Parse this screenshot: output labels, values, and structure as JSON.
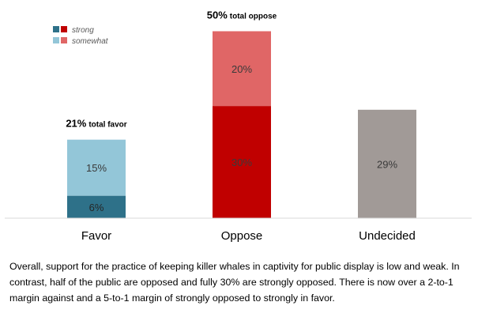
{
  "chart_data": {
    "type": "bar",
    "stacked": true,
    "categories": [
      "Favor",
      "Oppose",
      "Undecided"
    ],
    "series": [
      {
        "name": "strong",
        "values": [
          6,
          30,
          29
        ],
        "labels": [
          "6%",
          "30%",
          "29%"
        ]
      },
      {
        "name": "somewhat",
        "values": [
          15,
          20,
          0
        ],
        "labels": [
          "15%",
          "20%",
          ""
        ]
      }
    ],
    "colors": {
      "Favor": {
        "strong": "#2e7189",
        "somewhat": "#93c6d8"
      },
      "Oppose": {
        "strong": "#c00000",
        "somewhat": "#e06666"
      },
      "Undecided": {
        "strong": "#a19a97",
        "somewhat": "#a19a97"
      }
    },
    "legend": {
      "position": "top-left",
      "items": [
        {
          "label": "strong",
          "colors": [
            "#2e7189",
            "#c00000"
          ]
        },
        {
          "label": "somewhat",
          "colors": [
            "#93c6d8",
            "#e06666"
          ]
        }
      ]
    },
    "annotations": [
      {
        "category": "Favor",
        "value": "21%",
        "text": "total favor"
      },
      {
        "category": "Oppose",
        "value": "50%",
        "text": "total oppose"
      }
    ],
    "axis_line_color": "#d9d9d9",
    "ylim": [
      0,
      50
    ],
    "title": "",
    "xlabel": "",
    "ylabel": ""
  },
  "caption": "Overall, support for the practice of keeping killer whales in captivity for public display is low and weak.  In contrast, half of the public are opposed and fully 30% are strongly opposed.  There is now over a 2-to-1 margin against and a 5-to-1 margin of strongly opposed to strongly in favor."
}
